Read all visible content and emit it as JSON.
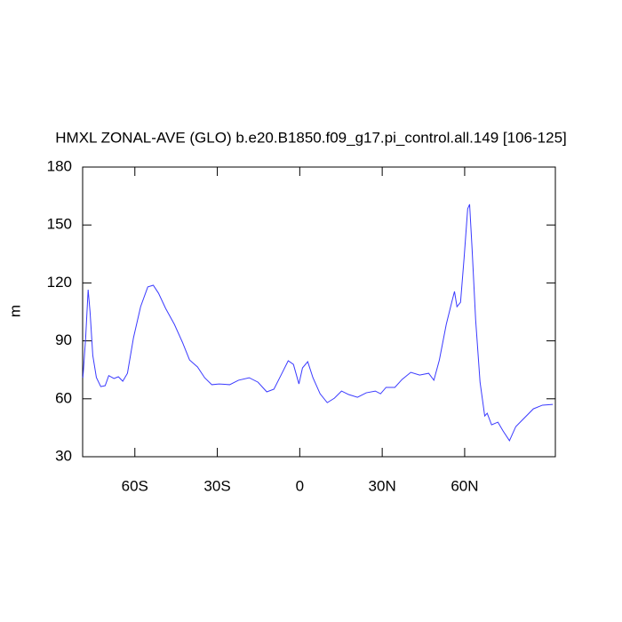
{
  "chart_data": {
    "type": "line",
    "title": "HMXL ZONAL-AVE (GLO) b.e20.B1850.f09_g17.pi_control.all.149 [106-125]",
    "ylabel": "m",
    "xlim": [
      -79,
      93
    ],
    "ylim": [
      30,
      180
    ],
    "xticks": [
      {
        "value": -60,
        "label": "60S"
      },
      {
        "value": -30,
        "label": "30S"
      },
      0,
      {
        "value": 30,
        "label": "30N"
      },
      {
        "value": 60,
        "label": "60N"
      }
    ],
    "yticks": [
      30,
      60,
      90,
      120,
      150,
      180
    ],
    "x": [
      -78.9,
      -77.9,
      -77,
      -76.3,
      -75.3,
      -74,
      -72.4,
      -70.8,
      -69.5,
      -67.6,
      -66,
      -64.4,
      -62.7,
      -60.5,
      -57.9,
      -55.3,
      -53.3,
      -51.4,
      -48.8,
      -45.6,
      -42.7,
      -40.1,
      -37.2,
      -34.6,
      -32,
      -29.4,
      -25.5,
      -22.3,
      -18.4,
      -15.2,
      -12,
      -9.4,
      -6.8,
      -4.2,
      -2.3,
      -0.3,
      1,
      2.9,
      4.8,
      7.4,
      10,
      12.6,
      15.2,
      17.8,
      21,
      24.2,
      27.5,
      29.4,
      31.4,
      34.6,
      37.2,
      40.4,
      43.6,
      46.9,
      48.8,
      50.8,
      53.3,
      55.3,
      56.3,
      57.2,
      58.5,
      59.8,
      61.1,
      61.8,
      62.7,
      64,
      65.6,
      67.3,
      68.2,
      69.8,
      72.1,
      74,
      76.3,
      78.6,
      81.8,
      85,
      88.3,
      92.1
    ],
    "series": [
      {
        "color": "#3a3aff",
        "values": [
          70.9,
          91.6,
          116.5,
          105,
          82.4,
          71,
          66.3,
          66.8,
          72,
          70.5,
          71.4,
          69.1,
          73.2,
          91.6,
          107.7,
          117.9,
          118.8,
          114.7,
          106.8,
          98.5,
          89.3,
          80.1,
          76.5,
          70.9,
          67.3,
          67.7,
          67.3,
          69.6,
          70.9,
          68.6,
          63.6,
          65,
          72.3,
          79.7,
          77.8,
          67.7,
          76,
          79.2,
          70.9,
          62.6,
          58,
          60.3,
          64,
          62.2,
          60.8,
          63.1,
          64,
          62.6,
          65.9,
          65.9,
          70,
          73.7,
          72.3,
          73.2,
          69.6,
          80.1,
          98.5,
          110,
          115.6,
          107.7,
          110,
          133,
          158.4,
          160.7,
          137.7,
          100.8,
          68.6,
          51.1,
          52.5,
          46.5,
          47.9,
          43.3,
          38.3,
          45.6,
          50.2,
          54.8,
          56.7,
          57.1
        ]
      }
    ]
  }
}
